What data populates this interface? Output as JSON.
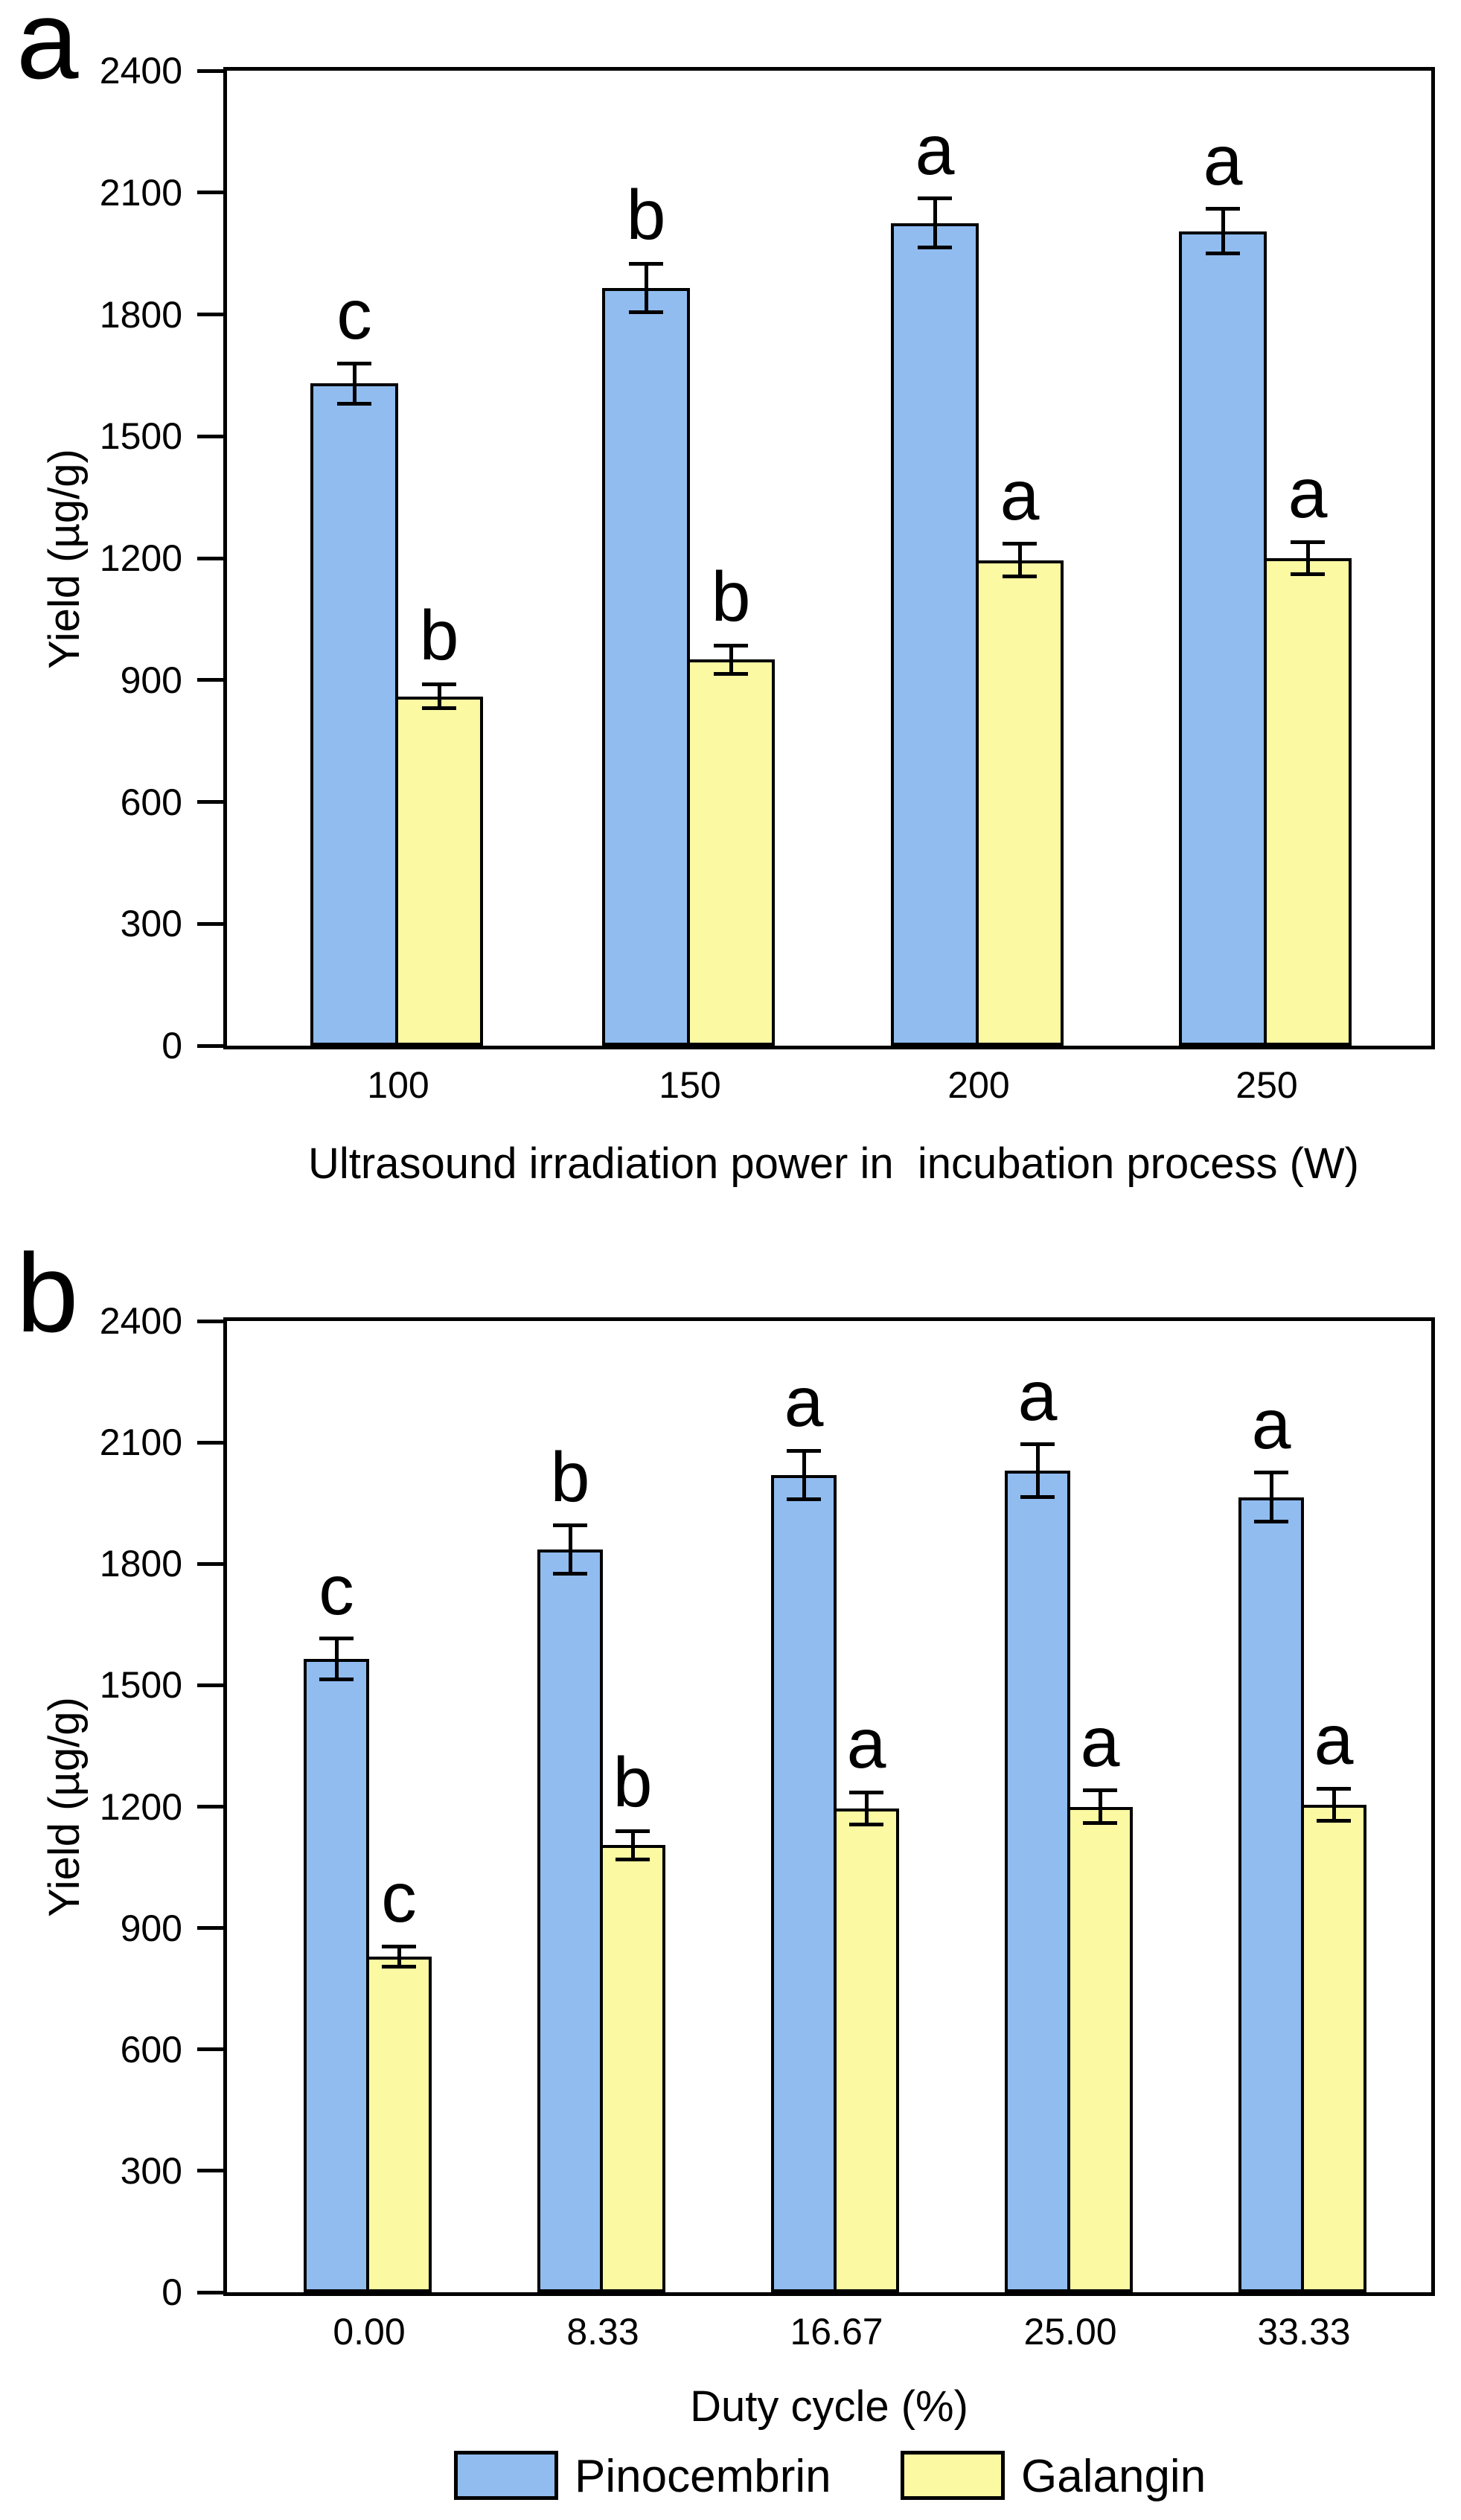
{
  "figure": {
    "background": "#ffffff",
    "colors": {
      "pinocembrin_fill": "#90BCF0",
      "galangin_fill": "#FBF9A2",
      "stroke": "#000000"
    },
    "legend": {
      "items": [
        {
          "label": "Pinocembrin",
          "color_key": "pinocembrin_fill"
        },
        {
          "label": "Galangin",
          "color_key": "galangin_fill"
        }
      ]
    }
  },
  "chart_data": [
    {
      "type": "bar",
      "panel_label": "a",
      "ylabel": "Yield (µg/g)",
      "xlabel": "Ultrasound irradiation power in  incubation process (W)",
      "ylim": [
        0,
        2400
      ],
      "ytick_step": 300,
      "yticks": [
        0,
        300,
        600,
        900,
        1200,
        1500,
        1800,
        2100,
        2400
      ],
      "grid": false,
      "categories": [
        "100",
        "150",
        "200",
        "250"
      ],
      "series": [
        {
          "name": "Pinocembrin",
          "values": [
            1630,
            1865,
            2025,
            2005
          ],
          "errors": [
            50,
            60,
            60,
            55
          ],
          "sig_letters": [
            "c",
            "b",
            "a",
            "a"
          ]
        },
        {
          "name": "Galangin",
          "values": [
            860,
            950,
            1195,
            1200
          ],
          "errors": [
            30,
            35,
            40,
            40
          ],
          "sig_letters": [
            "b",
            "b",
            "a",
            "a"
          ]
        }
      ]
    },
    {
      "type": "bar",
      "panel_label": "b",
      "ylabel": "Yield (µg/g)",
      "xlabel": "Duty cycle (%)",
      "ylim": [
        0,
        2400
      ],
      "ytick_step": 300,
      "yticks": [
        0,
        300,
        600,
        900,
        1200,
        1500,
        1800,
        2100,
        2400
      ],
      "grid": false,
      "categories": [
        "0.00",
        "8.33",
        "16.67",
        "25.00",
        "33.33"
      ],
      "series": [
        {
          "name": "Pinocembrin",
          "values": [
            1565,
            1835,
            2020,
            2030,
            1965
          ],
          "errors": [
            50,
            60,
            60,
            65,
            60
          ],
          "sig_letters": [
            "c",
            "b",
            "a",
            "a",
            "a"
          ]
        },
        {
          "name": "Galangin",
          "values": [
            830,
            1105,
            1195,
            1200,
            1205
          ],
          "errors": [
            25,
            35,
            40,
            40,
            40
          ],
          "sig_letters": [
            "c",
            "b",
            "a",
            "a",
            "a"
          ]
        }
      ]
    }
  ]
}
